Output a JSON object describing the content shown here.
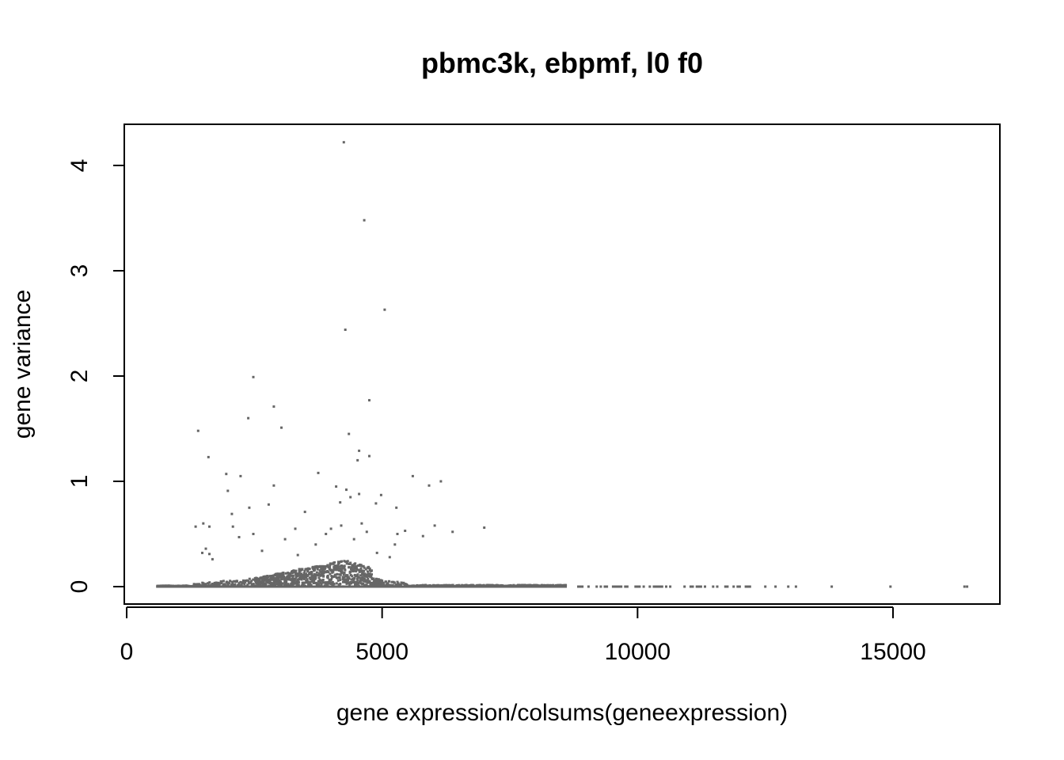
{
  "chart_data": {
    "type": "scatter",
    "title": "pbmc3k, ebpmf, l0 f0",
    "xlabel": "gene expression/colsums(geneexpression)",
    "ylabel": "gene variance",
    "xlim": [
      0,
      17000
    ],
    "ylim": [
      0,
      4.35
    ],
    "x_ticks": [
      0,
      5000,
      10000,
      15000
    ],
    "x_tick_labels": [
      "0",
      "5000",
      "10000",
      "15000"
    ],
    "y_ticks": [
      0,
      1,
      2,
      3,
      4
    ],
    "y_tick_labels": [
      "0",
      "1",
      "2",
      "3",
      "4"
    ],
    "grid": false,
    "legend": "none",
    "point_color": "#666666",
    "points": [
      [
        4250,
        4.22
      ],
      [
        4650,
        3.48
      ],
      [
        5050,
        2.63
      ],
      [
        4280,
        2.44
      ],
      [
        2480,
        1.99
      ],
      [
        4750,
        1.77
      ],
      [
        2880,
        1.71
      ],
      [
        2380,
        1.6
      ],
      [
        3030,
        1.51
      ],
      [
        1400,
        1.48
      ],
      [
        4350,
        1.45
      ],
      [
        4550,
        1.29
      ],
      [
        4750,
        1.24
      ],
      [
        4520,
        1.2
      ],
      [
        1600,
        1.23
      ],
      [
        1950,
        1.07
      ],
      [
        3750,
        1.08
      ],
      [
        2230,
        1.05
      ],
      [
        5600,
        1.05
      ],
      [
        6150,
        1.0
      ],
      [
        5920,
        0.96
      ],
      [
        2880,
        0.96
      ],
      [
        4100,
        0.95
      ],
      [
        4300,
        0.92
      ],
      [
        1980,
        0.91
      ],
      [
        4550,
        0.88
      ],
      [
        4980,
        0.87
      ],
      [
        4380,
        0.85
      ],
      [
        4180,
        0.8
      ],
      [
        4880,
        0.79
      ],
      [
        2780,
        0.78
      ],
      [
        2400,
        0.75
      ],
      [
        5280,
        0.75
      ],
      [
        3490,
        0.71
      ],
      [
        2060,
        0.69
      ],
      [
        6030,
        0.58
      ],
      [
        1350,
        0.57
      ],
      [
        1500,
        0.6
      ],
      [
        1620,
        0.57
      ],
      [
        2080,
        0.57
      ],
      [
        3300,
        0.55
      ],
      [
        4000,
        0.55
      ],
      [
        5450,
        0.53
      ],
      [
        5300,
        0.5
      ],
      [
        6380,
        0.52
      ],
      [
        7000,
        0.56
      ],
      [
        5800,
        0.48
      ],
      [
        2200,
        0.47
      ],
      [
        2480,
        0.5
      ],
      [
        4600,
        0.6
      ],
      [
        4200,
        0.58
      ],
      [
        3900,
        0.5
      ],
      [
        4700,
        0.52
      ],
      [
        5250,
        0.4
      ],
      [
        1550,
        0.36
      ],
      [
        1480,
        0.32
      ],
      [
        1620,
        0.31
      ],
      [
        1680,
        0.26
      ],
      [
        2650,
        0.34
      ],
      [
        4900,
        0.32
      ],
      [
        5150,
        0.28
      ],
      [
        3100,
        0.45
      ],
      [
        3700,
        0.4
      ],
      [
        4450,
        0.45
      ],
      [
        3350,
        0.3
      ],
      [
        13800,
        0.0
      ],
      [
        14950,
        0.0
      ],
      [
        16400,
        0.0
      ],
      [
        16450,
        0.0
      ],
      [
        12500,
        0.0
      ],
      [
        12700,
        0.0
      ],
      [
        12950,
        0.0
      ],
      [
        13100,
        0.0
      ]
    ],
    "bulk_description": "dense mass of points near zero variance between x=600 and x=13100, peaking around x=3000-4800"
  }
}
